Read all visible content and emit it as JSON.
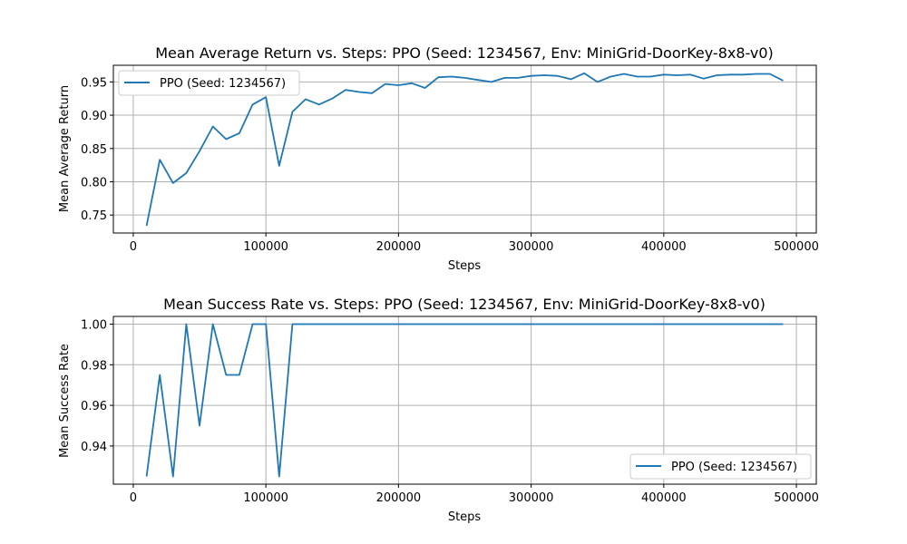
{
  "chart_data": [
    {
      "type": "line",
      "title": "Mean Average Return vs. Steps: PPO (Seed: 1234567, Env: MiniGrid-DoorKey-8x8-v0)",
      "xlabel": "Steps",
      "ylabel": "Mean Average Return",
      "xlim": [
        -15000,
        515000
      ],
      "ylim": [
        0.723,
        0.975
      ],
      "xticks": [
        0,
        100000,
        200000,
        300000,
        400000,
        500000
      ],
      "xtick_labels": [
        "0",
        "100000",
        "200000",
        "300000",
        "400000",
        "500000"
      ],
      "yticks": [
        0.75,
        0.8,
        0.85,
        0.9,
        0.95
      ],
      "ytick_labels": [
        "0.75",
        "0.80",
        "0.85",
        "0.90",
        "0.95"
      ],
      "grid": true,
      "legend_position": "upper-left",
      "series": [
        {
          "name": "PPO (Seed: 1234567)",
          "color": "#1f77b4",
          "x": [
            10000,
            20000,
            30000,
            40000,
            50000,
            60000,
            70000,
            80000,
            90000,
            100000,
            110000,
            120000,
            130000,
            140000,
            150000,
            160000,
            170000,
            180000,
            190000,
            200000,
            210000,
            220000,
            230000,
            240000,
            250000,
            260000,
            270000,
            280000,
            290000,
            300000,
            310000,
            320000,
            330000,
            340000,
            350000,
            360000,
            370000,
            380000,
            390000,
            400000,
            410000,
            420000,
            430000,
            440000,
            450000,
            460000,
            470000,
            480000,
            490000
          ],
          "y": [
            0.734,
            0.833,
            0.798,
            0.813,
            0.846,
            0.883,
            0.864,
            0.873,
            0.916,
            0.927,
            0.824,
            0.905,
            0.924,
            0.916,
            0.925,
            0.938,
            0.935,
            0.933,
            0.947,
            0.945,
            0.948,
            0.941,
            0.957,
            0.958,
            0.956,
            0.953,
            0.95,
            0.956,
            0.956,
            0.959,
            0.96,
            0.959,
            0.954,
            0.963,
            0.95,
            0.958,
            0.962,
            0.958,
            0.958,
            0.961,
            0.96,
            0.961,
            0.955,
            0.96,
            0.961,
            0.961,
            0.962,
            0.962,
            0.952
          ]
        }
      ]
    },
    {
      "type": "line",
      "title": "Mean Success Rate vs. Steps: PPO (Seed: 1234567, Env: MiniGrid-DoorKey-8x8-v0)",
      "xlabel": "Steps",
      "ylabel": "Mean Success Rate",
      "xlim": [
        -15000,
        515000
      ],
      "ylim": [
        0.9212,
        1.0038
      ],
      "xticks": [
        0,
        100000,
        200000,
        300000,
        400000,
        500000
      ],
      "xtick_labels": [
        "0",
        "100000",
        "200000",
        "300000",
        "400000",
        "500000"
      ],
      "yticks": [
        0.94,
        0.96,
        0.98,
        1.0
      ],
      "ytick_labels": [
        "0.94",
        "0.96",
        "0.98",
        "1.00"
      ],
      "grid": true,
      "legend_position": "lower-right",
      "series": [
        {
          "name": "PPO (Seed: 1234567)",
          "color": "#1f77b4",
          "x": [
            10000,
            20000,
            30000,
            40000,
            50000,
            60000,
            70000,
            80000,
            90000,
            100000,
            110000,
            120000,
            130000,
            140000,
            150000,
            160000,
            170000,
            180000,
            190000,
            200000,
            210000,
            220000,
            230000,
            240000,
            250000,
            260000,
            270000,
            280000,
            290000,
            300000,
            310000,
            320000,
            330000,
            340000,
            350000,
            360000,
            370000,
            380000,
            390000,
            400000,
            410000,
            420000,
            430000,
            440000,
            450000,
            460000,
            470000,
            480000,
            490000
          ],
          "y": [
            0.925,
            0.975,
            0.925,
            1.0,
            0.95,
            1.0,
            0.975,
            0.975,
            1.0,
            1.0,
            0.925,
            1.0,
            1.0,
            1.0,
            1.0,
            1.0,
            1.0,
            1.0,
            1.0,
            1.0,
            1.0,
            1.0,
            1.0,
            1.0,
            1.0,
            1.0,
            1.0,
            1.0,
            1.0,
            1.0,
            1.0,
            1.0,
            1.0,
            1.0,
            1.0,
            1.0,
            1.0,
            1.0,
            1.0,
            1.0,
            1.0,
            1.0,
            1.0,
            1.0,
            1.0,
            1.0,
            1.0,
            1.0,
            1.0
          ]
        }
      ]
    }
  ]
}
